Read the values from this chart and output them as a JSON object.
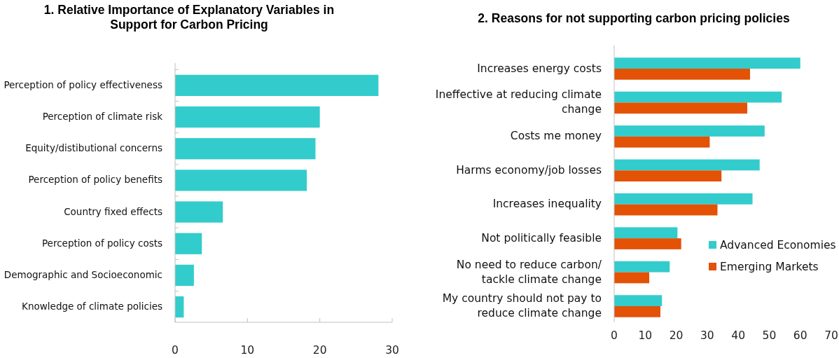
{
  "chart_data": [
    {
      "type": "bar",
      "orientation": "horizontal",
      "title": "1. Relative Importance of Explanatory Variables in Support for Carbon Pricing",
      "categories": [
        "Perception of policy effectiveness",
        "Perception of climate risk",
        "Equity/distibutional concerns",
        "Perception of policy benefits",
        "Country fixed effects",
        "Perception of policy costs",
        "Demographic and Socioeconomic",
        "Knowledge of climate policies"
      ],
      "series": [
        {
          "color": "#33cccc",
          "values": [
            28.1,
            20.0,
            19.4,
            18.2,
            6.6,
            3.7,
            2.6,
            1.2
          ]
        }
      ],
      "xlim": [
        0,
        30
      ],
      "xticks": [
        0,
        10,
        20,
        30
      ],
      "grid": false,
      "legend": false
    },
    {
      "type": "bar",
      "orientation": "horizontal",
      "title": "2. Reasons for not supporting carbon pricing policies",
      "categories": [
        "Increases energy costs",
        "Ineffective at reducing climate change",
        "Costs me money",
        "Harms economy/job losses",
        "Increases inequality",
        "Not politically feasible",
        "No need to reduce carbon/ tackle climate change",
        "My country should not pay to reduce climate change"
      ],
      "series": [
        {
          "name": "Advanced Economies",
          "color": "#33cccc",
          "values": [
            60,
            54,
            48.5,
            46.9,
            44.6,
            20.4,
            17.9,
            15.4
          ]
        },
        {
          "name": "Emerging Markets",
          "color": "#e35205",
          "values": [
            43.8,
            42.9,
            30.8,
            34.6,
            33.3,
            21.6,
            11.3,
            14.9
          ]
        }
      ],
      "xlim": [
        0,
        70
      ],
      "xticks": [
        0,
        10,
        20,
        30,
        40,
        50,
        60,
        70
      ],
      "grid": false,
      "legend": "bottom right"
    }
  ]
}
